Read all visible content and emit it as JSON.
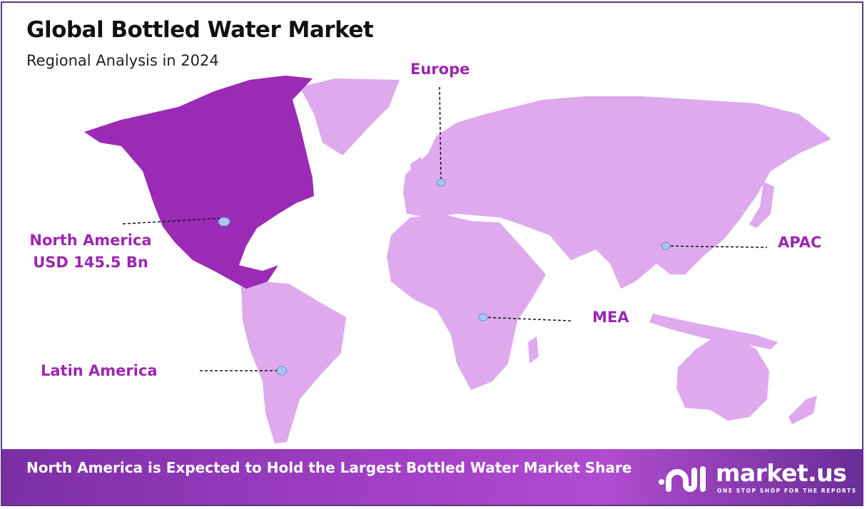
{
  "header": {
    "title": "Global Bottled Water Market",
    "subtitle": "Regional Analysis in 2024"
  },
  "colors": {
    "highlight_region": "#9b2bb5",
    "other_regions": "#dfa9ee",
    "label": "#9b27b0",
    "marker": "#a9c4f0"
  },
  "highlighted_region": "North America",
  "regions": [
    {
      "name": "North America",
      "value": "USD 145.5 Bn"
    },
    {
      "name": "Europe"
    },
    {
      "name": "APAC"
    },
    {
      "name": "MEA"
    },
    {
      "name": "Latin America"
    }
  ],
  "footer": {
    "text": "North America is Expected to Hold the Largest Bottled Water Market Share"
  },
  "logo": {
    "name": "market.us",
    "tagline": "ONE STOP SHOP FOR THE REPORTS"
  }
}
